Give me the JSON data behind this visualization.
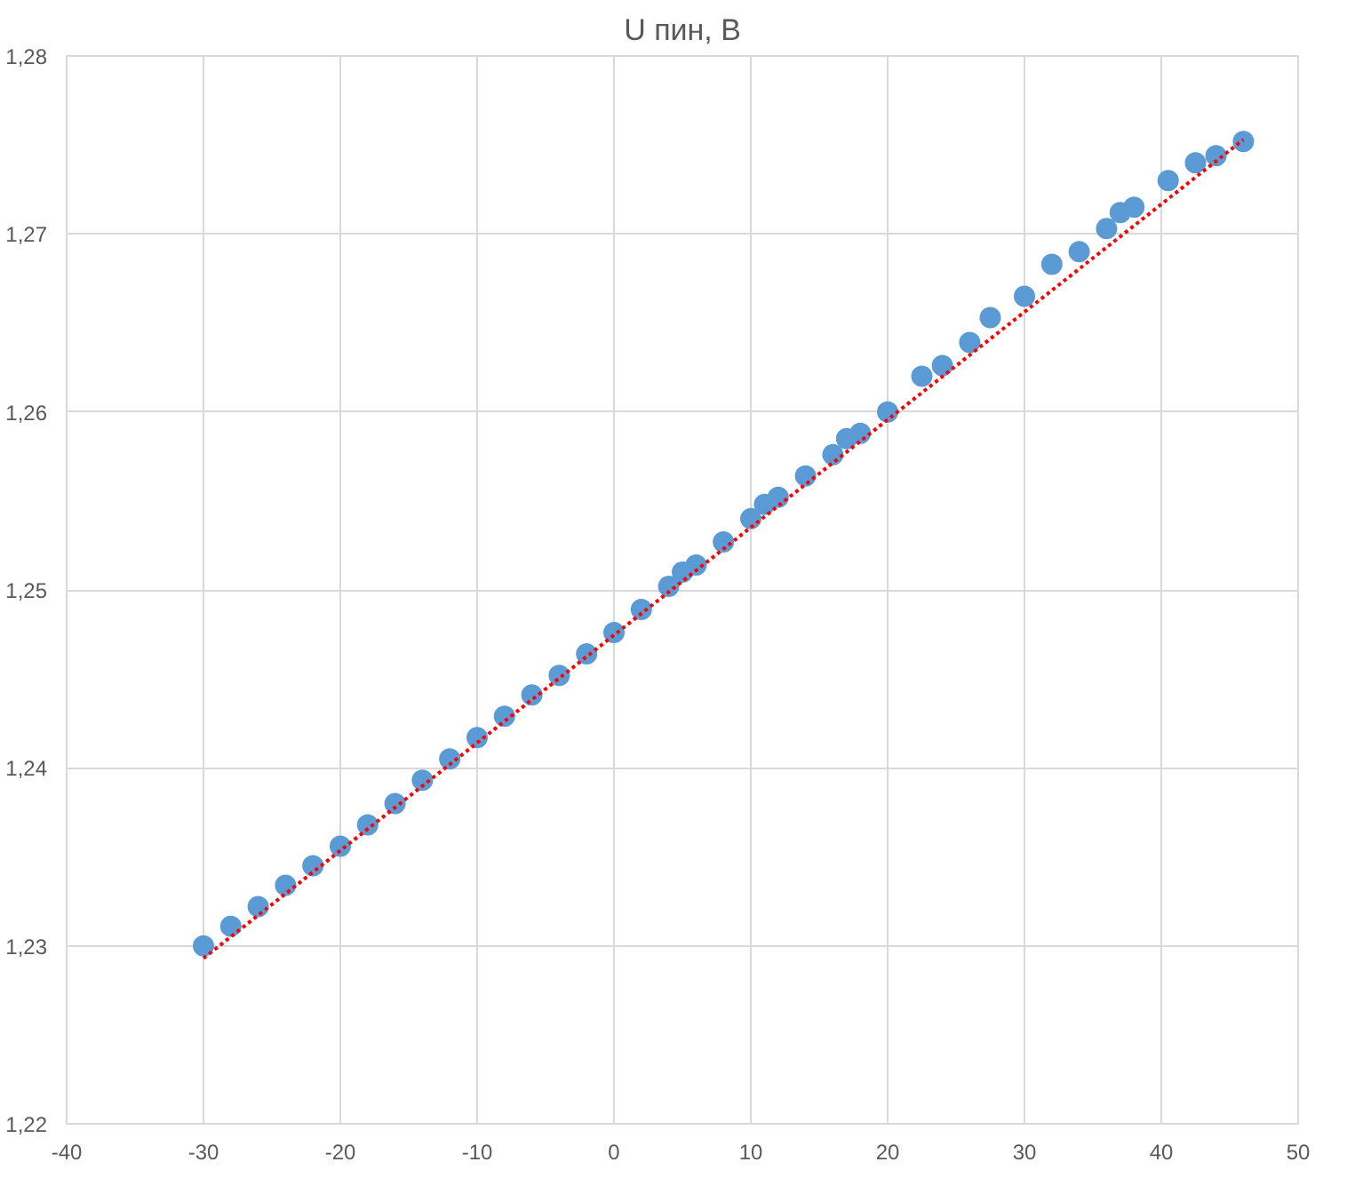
{
  "chart_data": {
    "type": "scatter",
    "title": "U пин, В",
    "grid": true,
    "xlim": [
      -40,
      50
    ],
    "xticks": [
      -40,
      -30,
      -20,
      -10,
      0,
      10,
      20,
      30,
      40,
      50
    ],
    "ylim": [
      1.22,
      1.28
    ],
    "yticks": [
      {
        "value": 1.22,
        "label": "1,22"
      },
      {
        "value": 1.23,
        "label": "1,23"
      },
      {
        "value": 1.24,
        "label": "1,24"
      },
      {
        "value": 1.25,
        "label": "1,25"
      },
      {
        "value": 1.26,
        "label": "1,26"
      },
      {
        "value": 1.27,
        "label": "1,27"
      },
      {
        "value": 1.28,
        "label": "1,28"
      }
    ],
    "series": [
      {
        "marker": "circle",
        "color": "#5b9bd5",
        "x": [
          -30,
          -28,
          -26,
          -24,
          -22,
          -20,
          -18,
          -16,
          -14,
          -12,
          -10,
          -8,
          -6,
          -4,
          -2,
          0,
          2,
          4,
          5,
          6,
          8,
          10,
          11,
          12,
          14,
          16,
          17,
          18,
          20,
          22.5,
          24,
          26,
          27.5,
          30,
          32,
          34,
          36,
          37,
          38,
          40.5,
          42.5,
          44,
          46
        ],
        "values": [
          1.23,
          1.2311,
          1.2322,
          1.2334,
          1.2345,
          1.2356,
          1.2368,
          1.238,
          1.2393,
          1.2405,
          1.2417,
          1.2429,
          1.2441,
          1.2452,
          1.2464,
          1.2476,
          1.2489,
          1.2502,
          1.251,
          1.2514,
          1.2527,
          1.254,
          1.2548,
          1.2552,
          1.2564,
          1.2576,
          1.2585,
          1.2588,
          1.26,
          1.262,
          1.2626,
          1.2639,
          1.2653,
          1.2665,
          1.2683,
          1.269,
          1.2703,
          1.2712,
          1.2715,
          1.273,
          1.274,
          1.2744,
          1.2752
        ]
      },
      {
        "type": "line",
        "color": "#ff0000",
        "line_style": "dotted",
        "x": [
          -30,
          46
        ],
        "values": [
          1.2293,
          1.2753
        ]
      }
    ]
  }
}
